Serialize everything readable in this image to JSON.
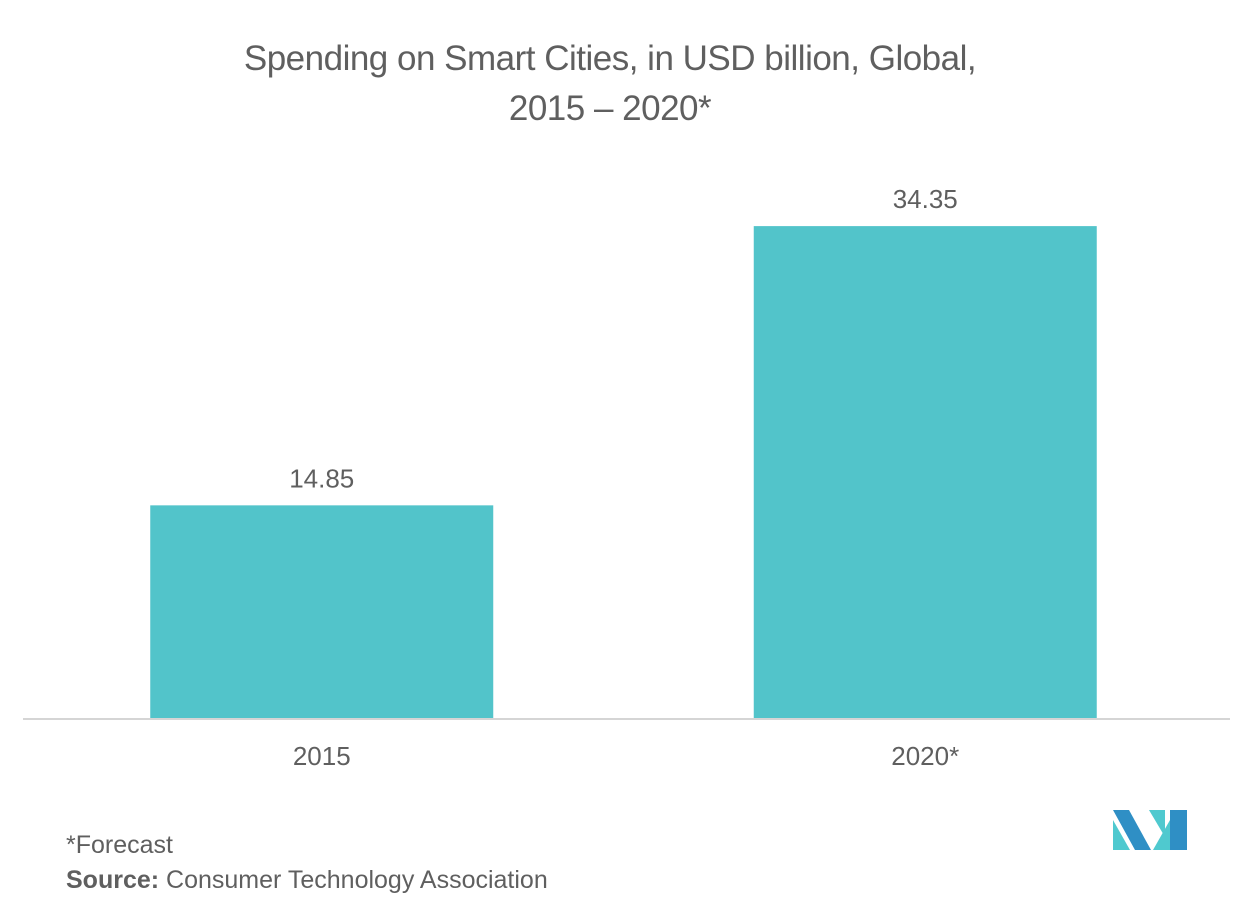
{
  "chart_data": {
    "type": "bar",
    "title": "Spending on Smart Cities, in USD billion, Global,",
    "subtitle": "2015 – 2020*",
    "categories": [
      "2015",
      "2020*"
    ],
    "values": [
      14.85,
      34.35
    ],
    "value_labels": [
      "14.85",
      "34.35"
    ],
    "xlabel": "",
    "ylabel": "",
    "ylim": [
      0,
      40
    ],
    "grid": false,
    "show_y_axis": false,
    "legend": "none",
    "bar_color": "#52c4ca",
    "baseline_color": "#d5d5d5",
    "text_color": "#5f5f5f"
  },
  "footer": {
    "note": "*Forecast",
    "source_label": "Source:",
    "source_text": " Consumer Technology Association"
  },
  "logo": {
    "name": "brand-logo",
    "colors": [
      "#2f8fc5",
      "#4fc9cf"
    ]
  }
}
